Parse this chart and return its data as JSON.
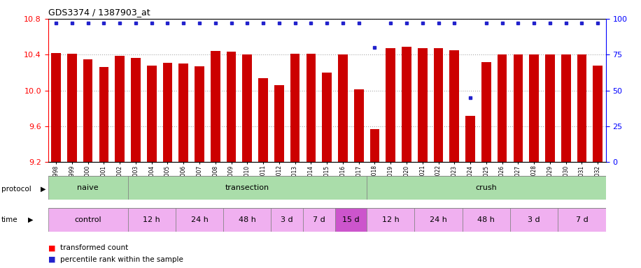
{
  "title": "GDS3374 / 1387903_at",
  "samples": [
    "GSM250998",
    "GSM250999",
    "GSM251000",
    "GSM251001",
    "GSM251002",
    "GSM251003",
    "GSM251004",
    "GSM251005",
    "GSM251006",
    "GSM251007",
    "GSM251008",
    "GSM251009",
    "GSM251010",
    "GSM251011",
    "GSM251012",
    "GSM251013",
    "GSM251014",
    "GSM251015",
    "GSM251016",
    "GSM251017",
    "GSM251018",
    "GSM251019",
    "GSM251020",
    "GSM251021",
    "GSM251022",
    "GSM251023",
    "GSM251024",
    "GSM251025",
    "GSM251026",
    "GSM251027",
    "GSM251028",
    "GSM251029",
    "GSM251030",
    "GSM251031",
    "GSM251032"
  ],
  "bar_values": [
    10.42,
    10.41,
    10.35,
    10.26,
    10.39,
    10.36,
    10.28,
    10.31,
    10.3,
    10.27,
    10.44,
    10.43,
    10.4,
    10.14,
    10.06,
    10.41,
    10.41,
    10.2,
    10.4,
    10.01,
    9.57,
    10.47,
    10.49,
    10.47,
    10.47,
    10.45,
    9.72,
    10.32,
    10.4,
    10.4,
    10.4,
    10.4,
    10.4,
    10.4,
    10.28
  ],
  "percentile_values": [
    97,
    97,
    97,
    97,
    97,
    97,
    97,
    97,
    97,
    97,
    97,
    97,
    97,
    97,
    97,
    97,
    97,
    97,
    97,
    97,
    80,
    97,
    97,
    97,
    97,
    97,
    45,
    97,
    97,
    97,
    97,
    97,
    97,
    97,
    97
  ],
  "bar_color": "#cc0000",
  "percentile_color": "#2222cc",
  "ylim": [
    9.2,
    10.8
  ],
  "ylim_right": [
    0,
    100
  ],
  "yticks_left": [
    9.2,
    9.6,
    10.0,
    10.4,
    10.8
  ],
  "yticks_right": [
    0,
    25,
    50,
    75,
    100
  ],
  "protocol_defs": [
    {
      "label": "naive",
      "start": 0,
      "end": 4,
      "color": "#aaddaa"
    },
    {
      "label": "transection",
      "start": 5,
      "end": 19,
      "color": "#aaddaa"
    },
    {
      "label": "crush",
      "start": 20,
      "end": 34,
      "color": "#aaddaa"
    }
  ],
  "time_defs": [
    {
      "label": "control",
      "start": 0,
      "end": 4,
      "color": "#f0b0f0"
    },
    {
      "label": "12 h",
      "start": 5,
      "end": 7,
      "color": "#f0b0f0"
    },
    {
      "label": "24 h",
      "start": 8,
      "end": 10,
      "color": "#f0b0f0"
    },
    {
      "label": "48 h",
      "start": 11,
      "end": 13,
      "color": "#f0b0f0"
    },
    {
      "label": "3 d",
      "start": 14,
      "end": 15,
      "color": "#f0b0f0"
    },
    {
      "label": "7 d",
      "start": 16,
      "end": 17,
      "color": "#f0b0f0"
    },
    {
      "label": "15 d",
      "start": 18,
      "end": 19,
      "color": "#cc55cc"
    },
    {
      "label": "12 h",
      "start": 20,
      "end": 22,
      "color": "#f0b0f0"
    },
    {
      "label": "24 h",
      "start": 23,
      "end": 25,
      "color": "#f0b0f0"
    },
    {
      "label": "48 h",
      "start": 26,
      "end": 28,
      "color": "#f0b0f0"
    },
    {
      "label": "3 d",
      "start": 29,
      "end": 31,
      "color": "#f0b0f0"
    },
    {
      "label": "7 d",
      "start": 32,
      "end": 34,
      "color": "#f0b0f0"
    }
  ],
  "grid_color": "#aaaaaa",
  "bg_color": "#ffffff",
  "label_transformed": "transformed count",
  "label_percentile": "percentile rank within the sample"
}
